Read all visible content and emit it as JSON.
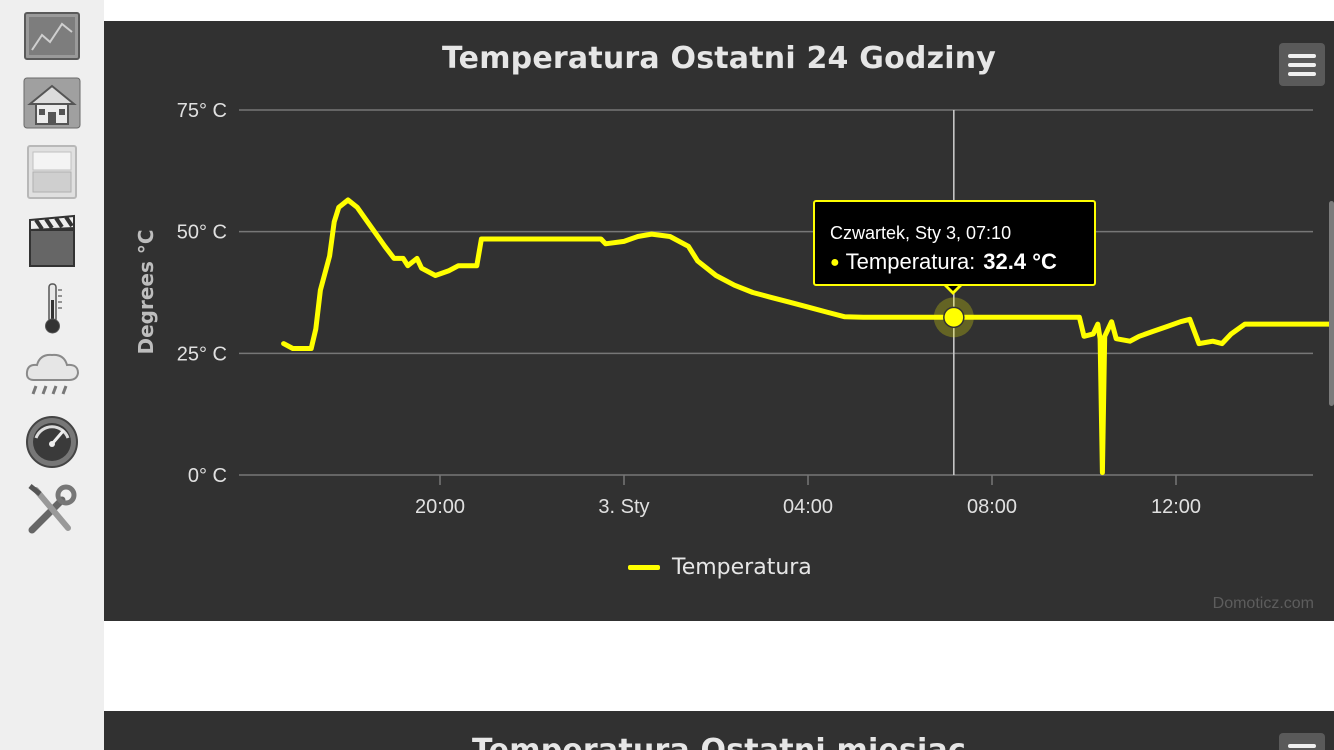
{
  "sidebar": {
    "items": [
      {
        "icon": "dashboard-screen-icon"
      },
      {
        "icon": "house-icon"
      },
      {
        "icon": "light-switch-icon"
      },
      {
        "icon": "clapperboard-icon"
      },
      {
        "icon": "thermometer-icon"
      },
      {
        "icon": "weather-rain-icon"
      },
      {
        "icon": "gauge-meter-icon"
      },
      {
        "icon": "tools-icon"
      }
    ]
  },
  "panel_day": {
    "title": "Temperatura Ostatni 24 Godziny",
    "menu_icon": "hamburger-menu-icon",
    "legend_label": "Temperatura",
    "credits": "Domoticz.com",
    "tooltip": {
      "date": "Czwartek, Sty 3, 07:10",
      "series_label": "Temperatura:",
      "value": "32.4 °C",
      "dot": "●"
    }
  },
  "panel_month": {
    "title": "Temperatura Ostatni miesiąc",
    "menu_icon": "hamburger-menu-icon"
  },
  "colors": {
    "panel_bg": "#313131",
    "series": "#ffff00",
    "grid": "#777777",
    "sidebar_bg": "#efefef"
  },
  "chart_data": {
    "type": "line",
    "title": "Temperatura Ostatni 24 Godziny",
    "ylabel": "Degrees °C",
    "xlabel": "",
    "ylim": [
      0,
      75
    ],
    "y_ticks": [
      0,
      25,
      50,
      75
    ],
    "y_tick_labels": [
      "0° C",
      "25° C",
      "50° C",
      "75° C"
    ],
    "x_range_hours": [
      15.5,
      15.9
    ],
    "x_ticks": [
      {
        "hour": 20,
        "label": "20:00"
      },
      {
        "hour": 24,
        "label": "3. Sty"
      },
      {
        "hour": 28,
        "label": "04:00"
      },
      {
        "hour": 32,
        "label": "08:00"
      },
      {
        "hour": 36,
        "label": "12:00"
      }
    ],
    "crosshair_hour": 31.17,
    "legend": "bottom-center",
    "grid": true,
    "series": [
      {
        "name": "Temperatura",
        "color": "#ffff00",
        "points": [
          [
            16.6,
            27.0
          ],
          [
            16.8,
            26.0
          ],
          [
            17.1,
            26.0
          ],
          [
            17.2,
            26.0
          ],
          [
            17.3,
            30.0
          ],
          [
            17.4,
            38.0
          ],
          [
            17.6,
            45.0
          ],
          [
            17.7,
            52.0
          ],
          [
            17.8,
            55.0
          ],
          [
            18.0,
            56.5
          ],
          [
            18.2,
            55.0
          ],
          [
            18.5,
            51.0
          ],
          [
            18.8,
            47.0
          ],
          [
            19.0,
            44.5
          ],
          [
            19.2,
            44.5
          ],
          [
            19.3,
            43.0
          ],
          [
            19.5,
            44.5
          ],
          [
            19.6,
            42.5
          ],
          [
            19.9,
            41.0
          ],
          [
            20.2,
            42.0
          ],
          [
            20.4,
            43.0
          ],
          [
            20.8,
            43.0
          ],
          [
            20.9,
            48.5
          ],
          [
            21.5,
            48.5
          ],
          [
            22.5,
            48.5
          ],
          [
            23.5,
            48.5
          ],
          [
            23.6,
            47.5
          ],
          [
            24.0,
            48.0
          ],
          [
            24.3,
            49.0
          ],
          [
            24.6,
            49.5
          ],
          [
            25.0,
            49.0
          ],
          [
            25.4,
            47.0
          ],
          [
            25.6,
            44.0
          ],
          [
            26.0,
            41.0
          ],
          [
            26.4,
            39.0
          ],
          [
            26.8,
            37.5
          ],
          [
            27.2,
            36.5
          ],
          [
            27.6,
            35.5
          ],
          [
            28.0,
            34.5
          ],
          [
            28.4,
            33.5
          ],
          [
            28.8,
            32.5
          ],
          [
            29.2,
            32.4
          ],
          [
            31.17,
            32.4
          ],
          [
            33.0,
            32.4
          ],
          [
            33.9,
            32.4
          ],
          [
            34.0,
            28.5
          ],
          [
            34.2,
            29.0
          ],
          [
            34.3,
            31.0
          ],
          [
            34.35,
            28.0
          ],
          [
            34.4,
            0.5
          ],
          [
            34.45,
            28.5
          ],
          [
            34.6,
            31.5
          ],
          [
            34.7,
            28.0
          ],
          [
            35.0,
            27.5
          ],
          [
            35.2,
            28.5
          ],
          [
            35.5,
            29.5
          ],
          [
            35.8,
            30.5
          ],
          [
            36.1,
            31.5
          ],
          [
            36.3,
            32.0
          ],
          [
            36.5,
            27.0
          ],
          [
            36.8,
            27.5
          ],
          [
            37.0,
            27.0
          ],
          [
            37.2,
            29.0
          ],
          [
            37.5,
            31.0
          ],
          [
            38.0,
            31.0
          ],
          [
            39.0,
            31.0
          ],
          [
            39.4,
            31.0
          ]
        ]
      }
    ],
    "tooltip_point": {
      "hour": 31.17,
      "value": 32.4
    }
  }
}
